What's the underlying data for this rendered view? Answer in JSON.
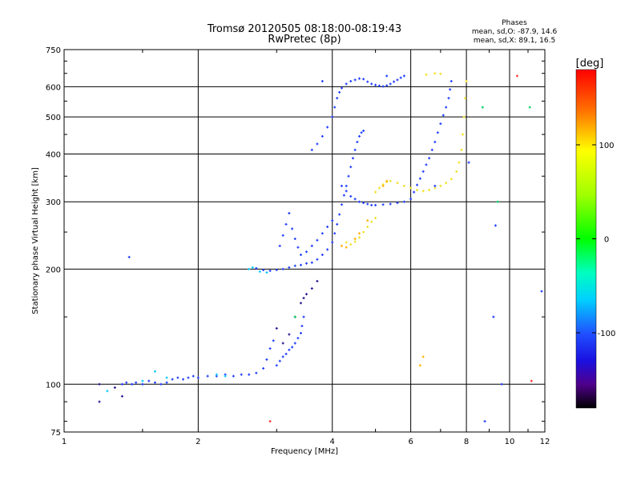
{
  "title_line1": "Tromsø 20120505 08:18:00-08:19:43",
  "title_line2": "RwPretec (8p)",
  "phases": {
    "heading": "Phases",
    "line_o": "mean, sd,O: -87.9, 14.6",
    "line_x": "mean, sd,X:  89.1, 16.5"
  },
  "colorbar": {
    "unit": "[deg]",
    "ticks": [
      {
        "value": 100,
        "label": "100"
      },
      {
        "value": 0,
        "label": "0"
      },
      {
        "value": -100,
        "label": "-100"
      }
    ],
    "range": [
      -180,
      180
    ]
  },
  "chart_data": {
    "type": "scatter",
    "xlabel": "Frequency [MHz]",
    "ylabel": "Stationary phase Virtual Height [km]",
    "xscale": "log",
    "yscale": "log",
    "xlim": [
      1,
      12
    ],
    "ylim": [
      75,
      750
    ],
    "xticks": [
      {
        "value": 1,
        "label": "1"
      },
      {
        "value": 2,
        "label": "2"
      },
      {
        "value": 4,
        "label": "4"
      },
      {
        "value": 6,
        "label": "6"
      },
      {
        "value": 8,
        "label": "8"
      },
      {
        "value": 10,
        "label": "10"
      },
      {
        "value": 12,
        "label": "12"
      }
    ],
    "yticks": [
      {
        "value": 75,
        "label": "75"
      },
      {
        "value": 100,
        "label": "100"
      },
      {
        "value": 200,
        "label": "200"
      },
      {
        "value": 300,
        "label": "300"
      },
      {
        "value": 400,
        "label": "400"
      },
      {
        "value": 500,
        "label": "500"
      },
      {
        "value": 600,
        "label": "600"
      },
      {
        "value": 750,
        "label": "750"
      }
    ],
    "grid": true,
    "series": [
      {
        "color": "#1e3cff",
        "points": [
          [
            1.35,
            100
          ],
          [
            1.38,
            101
          ],
          [
            1.42,
            100
          ],
          [
            1.45,
            101
          ],
          [
            1.5,
            100
          ],
          [
            1.55,
            102
          ],
          [
            1.6,
            101
          ],
          [
            1.65,
            100
          ],
          [
            1.7,
            101
          ],
          [
            1.75,
            103
          ],
          [
            1.8,
            104
          ],
          [
            1.85,
            103
          ],
          [
            1.9,
            104
          ],
          [
            1.95,
            105
          ],
          [
            2.0,
            104
          ],
          [
            2.1,
            105
          ],
          [
            2.2,
            105
          ],
          [
            2.3,
            106
          ],
          [
            2.4,
            105
          ],
          [
            2.5,
            106
          ],
          [
            2.6,
            106
          ],
          [
            2.7,
            107
          ],
          [
            2.8,
            110
          ],
          [
            2.85,
            116
          ],
          [
            2.9,
            124
          ],
          [
            2.95,
            130
          ],
          [
            3.0,
            112
          ],
          [
            3.05,
            115
          ],
          [
            3.1,
            118
          ],
          [
            3.15,
            120
          ],
          [
            3.2,
            123
          ],
          [
            3.25,
            125
          ],
          [
            3.3,
            128
          ],
          [
            3.35,
            132
          ],
          [
            3.4,
            136
          ],
          [
            3.42,
            142
          ],
          [
            3.45,
            150
          ],
          [
            2.7,
            201
          ],
          [
            2.8,
            199
          ],
          [
            2.9,
            198
          ],
          [
            3.0,
            199
          ],
          [
            3.1,
            200
          ],
          [
            3.2,
            202
          ],
          [
            3.3,
            204
          ],
          [
            3.4,
            205
          ],
          [
            3.5,
            207
          ],
          [
            3.6,
            208
          ],
          [
            3.7,
            212
          ],
          [
            3.8,
            218
          ],
          [
            3.9,
            225
          ],
          [
            4.0,
            235
          ],
          [
            4.05,
            248
          ],
          [
            4.1,
            262
          ],
          [
            4.15,
            278
          ],
          [
            4.2,
            295
          ],
          [
            4.25,
            312
          ],
          [
            4.3,
            330
          ],
          [
            4.35,
            350
          ],
          [
            4.4,
            370
          ],
          [
            4.45,
            390
          ],
          [
            4.5,
            410
          ],
          [
            4.55,
            430
          ],
          [
            4.6,
            445
          ],
          [
            4.65,
            455
          ],
          [
            4.7,
            460
          ],
          [
            3.05,
            230
          ],
          [
            3.1,
            245
          ],
          [
            3.15,
            262
          ],
          [
            3.2,
            280
          ],
          [
            3.25,
            255
          ],
          [
            3.3,
            240
          ],
          [
            3.35,
            228
          ],
          [
            3.4,
            218
          ],
          [
            3.5,
            222
          ],
          [
            3.6,
            230
          ],
          [
            3.7,
            238
          ],
          [
            3.8,
            248
          ],
          [
            3.9,
            258
          ],
          [
            4.0,
            268
          ],
          [
            4.2,
            330
          ],
          [
            4.3,
            320
          ],
          [
            4.4,
            310
          ],
          [
            4.5,
            305
          ],
          [
            4.6,
            300
          ],
          [
            4.7,
            298
          ],
          [
            4.8,
            296
          ],
          [
            4.9,
            294
          ],
          [
            5.0,
            294
          ],
          [
            5.2,
            295
          ],
          [
            5.4,
            296
          ],
          [
            5.6,
            298
          ],
          [
            5.8,
            300
          ],
          [
            6.0,
            305
          ],
          [
            6.1,
            318
          ],
          [
            6.2,
            332
          ],
          [
            6.3,
            345
          ],
          [
            6.4,
            360
          ],
          [
            6.5,
            375
          ],
          [
            6.6,
            390
          ],
          [
            6.7,
            410
          ],
          [
            6.8,
            430
          ],
          [
            6.9,
            455
          ],
          [
            7.0,
            480
          ],
          [
            7.1,
            505
          ],
          [
            7.2,
            530
          ],
          [
            7.3,
            560
          ],
          [
            7.35,
            590
          ],
          [
            7.4,
            620
          ],
          [
            3.6,
            410
          ],
          [
            3.7,
            425
          ],
          [
            3.8,
            445
          ],
          [
            3.9,
            470
          ],
          [
            4.0,
            500
          ],
          [
            4.05,
            530
          ],
          [
            4.1,
            560
          ],
          [
            4.15,
            580
          ],
          [
            4.2,
            595
          ],
          [
            4.3,
            610
          ],
          [
            4.4,
            620
          ],
          [
            4.5,
            625
          ],
          [
            4.6,
            630
          ],
          [
            4.7,
            628
          ],
          [
            4.8,
            618
          ],
          [
            4.9,
            610
          ],
          [
            5.0,
            606
          ],
          [
            5.1,
            603
          ],
          [
            5.2,
            601
          ],
          [
            5.3,
            604
          ],
          [
            5.4,
            610
          ],
          [
            5.5,
            618
          ],
          [
            5.6,
            625
          ],
          [
            5.7,
            633
          ],
          [
            5.8,
            640
          ]
        ]
      },
      {
        "color": "#f0e020",
        "points": [
          [
            4.3,
            235
          ],
          [
            4.4,
            232
          ],
          [
            4.5,
            236
          ],
          [
            4.6,
            242
          ],
          [
            4.7,
            250
          ],
          [
            4.8,
            258
          ],
          [
            4.9,
            266
          ],
          [
            5.0,
            272
          ],
          [
            5.0,
            318
          ],
          [
            5.1,
            326
          ],
          [
            5.2,
            333
          ],
          [
            5.3,
            338
          ],
          [
            5.4,
            340
          ],
          [
            5.6,
            336
          ],
          [
            5.8,
            330
          ],
          [
            6.0,
            326
          ],
          [
            6.2,
            322
          ],
          [
            6.4,
            320
          ],
          [
            6.6,
            322
          ],
          [
            6.8,
            326
          ],
          [
            7.0,
            330
          ],
          [
            7.2,
            336
          ],
          [
            7.4,
            344
          ],
          [
            7.6,
            360
          ],
          [
            7.7,
            380
          ],
          [
            7.8,
            410
          ],
          [
            7.85,
            450
          ],
          [
            7.9,
            500
          ],
          [
            7.95,
            560
          ],
          [
            8.0,
            620
          ],
          [
            6.5,
            645
          ],
          [
            6.8,
            650
          ],
          [
            7.0,
            648
          ]
        ]
      },
      {
        "color": "#ffb000",
        "points": [
          [
            4.2,
            230
          ],
          [
            4.3,
            228
          ],
          [
            4.5,
            240
          ],
          [
            4.6,
            248
          ],
          [
            4.8,
            268
          ],
          [
            5.2,
            330
          ],
          [
            5.3,
            340
          ],
          [
            6.3,
            112
          ],
          [
            6.4,
            118
          ]
        ]
      },
      {
        "color": "#00c8ff",
        "points": [
          [
            2.6,
            200
          ],
          [
            2.65,
            202
          ],
          [
            2.75,
            197
          ],
          [
            2.85,
            196
          ],
          [
            2.2,
            106
          ],
          [
            2.3,
            105
          ],
          [
            1.25,
            96
          ],
          [
            1.6,
            108
          ],
          [
            1.5,
            102
          ],
          [
            1.7,
            104
          ]
        ]
      },
      {
        "color": "#2b1190",
        "points": [
          [
            1.2,
            100
          ],
          [
            1.2,
            90
          ],
          [
            1.3,
            98
          ],
          [
            1.35,
            93
          ],
          [
            3.0,
            140
          ],
          [
            3.1,
            128
          ],
          [
            3.2,
            135
          ],
          [
            3.3,
            150
          ],
          [
            3.4,
            163
          ],
          [
            3.45,
            168
          ],
          [
            3.5,
            172
          ],
          [
            3.6,
            178
          ],
          [
            3.7,
            186
          ]
        ]
      },
      {
        "color": "#ff3030",
        "points": [
          [
            11.2,
            102
          ],
          [
            2.9,
            80
          ],
          [
            10.4,
            640
          ]
        ]
      },
      {
        "color": "#00d060",
        "points": [
          [
            8.7,
            530
          ],
          [
            11.1,
            530
          ],
          [
            9.4,
            300
          ],
          [
            3.3,
            150
          ]
        ]
      },
      {
        "color": "#1e3cff",
        "points": [
          [
            9.2,
            150
          ],
          [
            9.3,
            260
          ],
          [
            9.6,
            100
          ],
          [
            11.8,
            175
          ],
          [
            1.4,
            215
          ],
          [
            3.8,
            620
          ],
          [
            5.3,
            640
          ],
          [
            6.8,
            330
          ],
          [
            8.1,
            380
          ],
          [
            8.8,
            80
          ]
        ]
      }
    ]
  }
}
